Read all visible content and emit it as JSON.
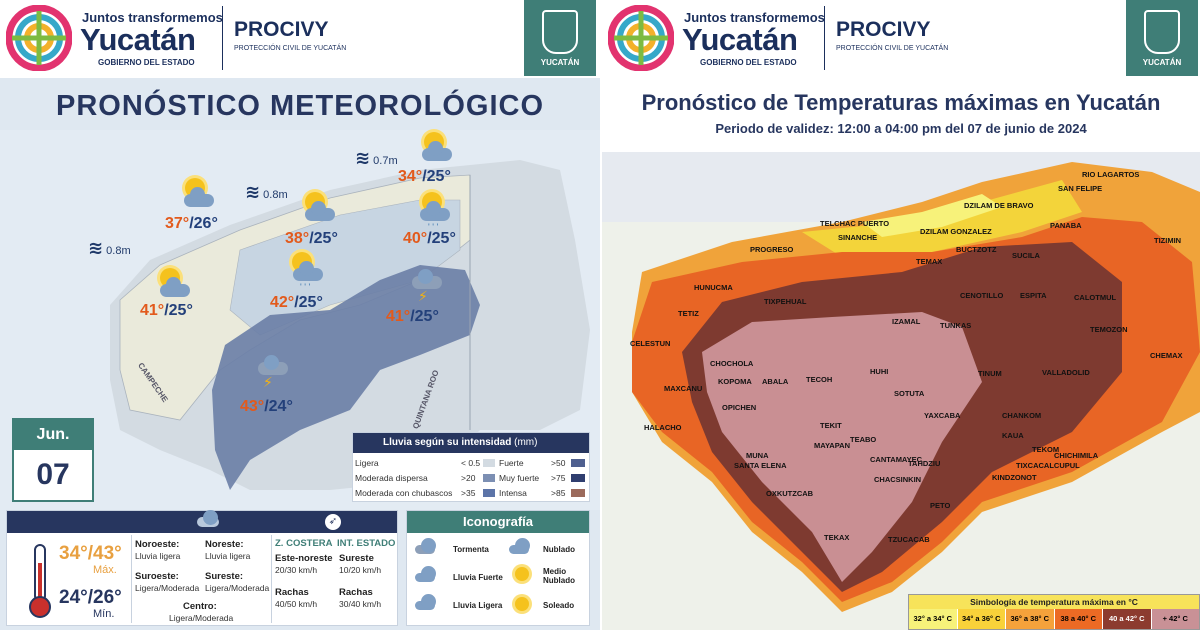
{
  "header": {
    "brand_line1": "Juntos transformemos",
    "brand_line2": "Yucatán",
    "brand_line3": "GOBIERNO DEL ESTADO",
    "agency": "PROCIVY",
    "agency_sub": "PROTECCIÓN CIVIL DE YUCATÁN",
    "seal_text": "YUCATÁN"
  },
  "left": {
    "title": "PRONÓSTICO METEOROLÓGICO",
    "waves": [
      "0.7m",
      "0.8m",
      "0.8m"
    ],
    "temps": [
      {
        "max": "34°",
        "min": "/25°"
      },
      {
        "max": "37°",
        "min": "/26°"
      },
      {
        "max": "38°",
        "min": "/25°"
      },
      {
        "max": "40°",
        "min": "/25°"
      },
      {
        "max": "41°",
        "min": "/25°"
      },
      {
        "max": "42°",
        "min": "/25°"
      },
      {
        "max": "41°",
        "min": "/25°"
      },
      {
        "max": "43°",
        "min": "/24°"
      }
    ],
    "state_labels": {
      "campeche": "CAMPECHE",
      "qroo": "QUINTANA ROO"
    },
    "date": {
      "month": "Jun.",
      "day": "07"
    },
    "legend": {
      "title": "Lluvia según su intensidad",
      "unit": "(mm)",
      "rows": [
        {
          "a": "Ligera",
          "av": "< 0.5",
          "b": "Fuerte",
          "bv": ">50"
        },
        {
          "a": "Moderada dispersa",
          "av": ">20",
          "b": "Muy fuerte",
          "bv": ">75"
        },
        {
          "a": "Moderada con chubascos",
          "av": ">35",
          "b": "Intensa",
          "bv": ">85"
        }
      ]
    },
    "summary": {
      "max_range": "34°/43°",
      "max_label": "Máx.",
      "min_range": "24°/26°",
      "min_label": "Mín.",
      "winds": [
        {
          "dir": "Noroeste:",
          "val": "Lluvia ligera"
        },
        {
          "dir": "Noreste:",
          "val": "Lluvia ligera"
        },
        {
          "dir": "Suroeste:",
          "val": "Ligera/Moderada"
        },
        {
          "dir": "Sureste:",
          "val": "Ligera/Moderada"
        },
        {
          "dir": "Centro:",
          "val": "Ligera/Moderada"
        }
      ],
      "coast_header": "Z. COSTERA",
      "state_header": "INT. ESTADO",
      "coast_dir": "Este-noreste",
      "coast_speed": "20/30 km/h",
      "state_dir": "Sureste",
      "state_speed": "10/20 km/h",
      "gusts_label": "Rachas",
      "coast_gusts": "40/50 km/h",
      "state_gusts": "30/40 km/h"
    },
    "icon_legend": {
      "title": "Iconografía",
      "items": [
        "Tormenta",
        "Nublado",
        "Lluvia Fuerte",
        "Medio Nublado",
        "Lluvia Ligera",
        "Soleado"
      ]
    }
  },
  "right": {
    "title": "Pronóstico de Temperaturas máximas en Yucatán",
    "subtitle": "Periodo de validez: 12:00 a 04:00 pm del 07 de junio de 2024",
    "municipalities": [
      "RIO LAGARTOS",
      "SAN FELIPE",
      "DZILAM DE BRAVO",
      "TELCHAC PUERTO",
      "DZILAM GONZALEZ",
      "PANABA",
      "TIZIMIN",
      "PROGRESO",
      "SINANCHE",
      "BUCTZOTZ",
      "SUCILA",
      "TEMAX",
      "HUNUCMA",
      "ESPITA",
      "CALOTMUL",
      "CENOTILLO",
      "TIXPEHUAL",
      "IZAMAL",
      "TEMOZON",
      "TETIZ",
      "CELESTUN",
      "CHEMAX",
      "TUNKAS",
      "CHOCHOLA",
      "TINUM",
      "VALLADOLID",
      "MAXCANU",
      "KOPOMA",
      "ABALA",
      "TECOH",
      "HUHI",
      "SOTUTA",
      "HALACHO",
      "OPICHEN",
      "TEKIT",
      "YAXCABA",
      "CHANKOM",
      "TEKOM",
      "CHICHIMILA",
      "MUNA",
      "MAYAPAN",
      "TEABO",
      "KAUA",
      "TIXCACALCUPUL",
      "KINDZONOT",
      "SANTA ELENA",
      "CHACSINKIN",
      "CANTAMAYEC",
      "TAHDZIU",
      "OXKUTZCAB",
      "PETO",
      "TEKAX",
      "TZUCACAB"
    ],
    "legend": {
      "title": "Simbología de temperatura máxima en °C",
      "bins": [
        {
          "label": "32° a 34° C",
          "color": "#f7f27a"
        },
        {
          "label": "34° a 36° C",
          "color": "#f9d23a"
        },
        {
          "label": "36° a 38° C",
          "color": "#f5a23b"
        },
        {
          "label": "38 a 40° C",
          "color": "#ec6a24"
        },
        {
          "label": "40 a 42° C",
          "color": "#8c3b2f"
        },
        {
          "label": "+ 42° C",
          "color": "#c99196"
        }
      ]
    }
  }
}
